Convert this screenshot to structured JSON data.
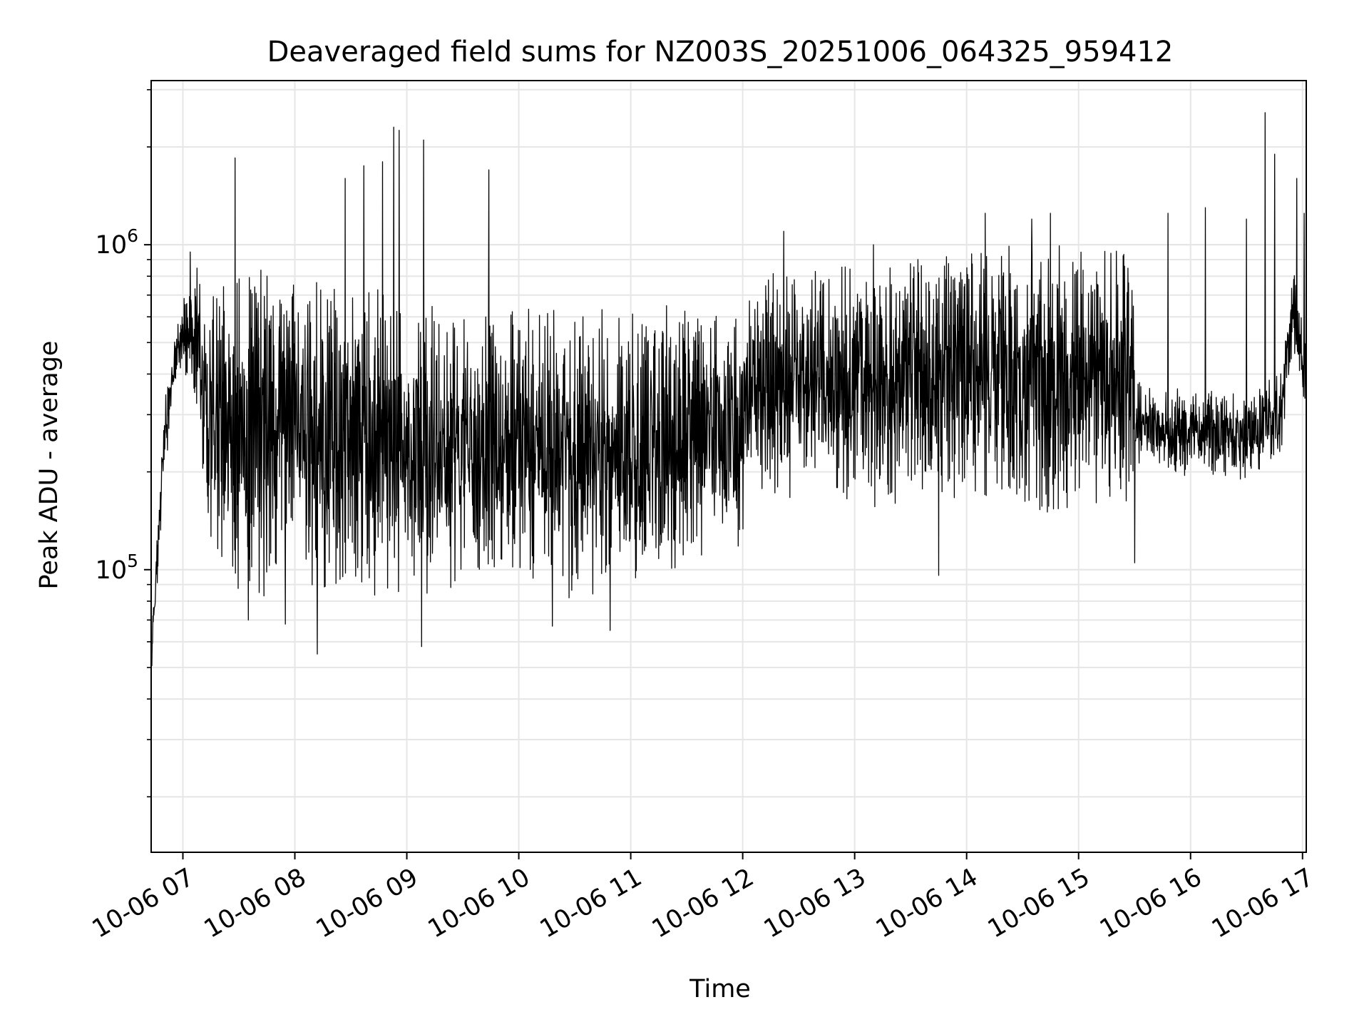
{
  "chart_data": {
    "type": "line",
    "title": "Deaveraged field sums for NZ003S_20251006_064325_959412",
    "xlabel": "Time",
    "ylabel": "Peak ADU - average",
    "yscale": "log",
    "ylim": [
      13500,
      3200000
    ],
    "xlim": [
      "2025-10-06 06:43",
      "2025-10-06 17:02"
    ],
    "grid": true,
    "legend": "none",
    "y_ticks": [
      {
        "value": 100000,
        "base": "10",
        "exp": "5"
      },
      {
        "value": 1000000,
        "base": "10",
        "exp": "6"
      }
    ],
    "x_ticks": [
      {
        "value": "2025-10-06 07:00",
        "label": "10-06 07"
      },
      {
        "value": "2025-10-06 08:00",
        "label": "10-06 08"
      },
      {
        "value": "2025-10-06 09:00",
        "label": "10-06 09"
      },
      {
        "value": "2025-10-06 10:00",
        "label": "10-06 10"
      },
      {
        "value": "2025-10-06 11:00",
        "label": "10-06 11"
      },
      {
        "value": "2025-10-06 12:00",
        "label": "10-06 12"
      },
      {
        "value": "2025-10-06 13:00",
        "label": "10-06 13"
      },
      {
        "value": "2025-10-06 14:00",
        "label": "10-06 14"
      },
      {
        "value": "2025-10-06 15:00",
        "label": "10-06 15"
      },
      {
        "value": "2025-10-06 16:00",
        "label": "10-06 16"
      },
      {
        "value": "2025-10-06 17:00",
        "label": "10-06 17"
      }
    ],
    "series": [
      {
        "color": "#000000",
        "envelope": [
          {
            "t": "2025-10-06 06:43",
            "low": 45000,
            "high": 60000
          },
          {
            "t": "2025-10-06 06:50",
            "low": 190000,
            "high": 330000
          },
          {
            "t": "2025-10-06 06:57",
            "low": 420000,
            "high": 560000
          },
          {
            "t": "2025-10-06 07:05",
            "low": 380000,
            "high": 900000
          },
          {
            "t": "2025-10-06 07:15",
            "low": 110000,
            "high": 800000
          },
          {
            "t": "2025-10-06 07:30",
            "low": 80000,
            "high": 850000
          },
          {
            "t": "2025-10-06 07:45",
            "low": 75000,
            "high": 850000
          },
          {
            "t": "2025-10-06 08:00",
            "low": 140000,
            "high": 850000
          },
          {
            "t": "2025-10-06 08:10",
            "low": 80000,
            "high": 900000
          },
          {
            "t": "2025-10-06 08:30",
            "low": 80000,
            "high": 800000
          },
          {
            "t": "2025-10-06 09:00",
            "low": 80000,
            "high": 700000
          },
          {
            "t": "2025-10-06 09:30",
            "low": 90000,
            "high": 650000
          },
          {
            "t": "2025-10-06 10:00",
            "low": 85000,
            "high": 650000
          },
          {
            "t": "2025-10-06 10:30",
            "low": 80000,
            "high": 650000
          },
          {
            "t": "2025-10-06 11:00",
            "low": 90000,
            "high": 650000
          },
          {
            "t": "2025-10-06 11:30",
            "low": 100000,
            "high": 650000
          },
          {
            "t": "2025-10-06 11:58",
            "low": 110000,
            "high": 600000
          },
          {
            "t": "2025-10-06 12:05",
            "low": 180000,
            "high": 800000
          },
          {
            "t": "2025-10-06 12:30",
            "low": 160000,
            "high": 850000
          },
          {
            "t": "2025-10-06 13:00",
            "low": 150000,
            "high": 900000
          },
          {
            "t": "2025-10-06 13:30",
            "low": 160000,
            "high": 950000
          },
          {
            "t": "2025-10-06 14:00",
            "low": 160000,
            "high": 1000000
          },
          {
            "t": "2025-10-06 14:30",
            "low": 150000,
            "high": 1050000
          },
          {
            "t": "2025-10-06 15:00",
            "low": 150000,
            "high": 1000000
          },
          {
            "t": "2025-10-06 15:28",
            "low": 160000,
            "high": 950000
          },
          {
            "t": "2025-10-06 15:32",
            "low": 200000,
            "high": 380000
          },
          {
            "t": "2025-10-06 16:00",
            "low": 190000,
            "high": 360000
          },
          {
            "t": "2025-10-06 16:30",
            "low": 190000,
            "high": 360000
          },
          {
            "t": "2025-10-06 16:48",
            "low": 220000,
            "high": 420000
          },
          {
            "t": "2025-10-06 16:55",
            "low": 450000,
            "high": 900000
          },
          {
            "t": "2025-10-06 17:02",
            "low": 280000,
            "high": 500000
          }
        ],
        "spikes": [
          {
            "t": "2025-10-06 07:04",
            "value": 950000
          },
          {
            "t": "2025-10-06 07:28",
            "value": 1850000
          },
          {
            "t": "2025-10-06 07:35",
            "value": 70000
          },
          {
            "t": "2025-10-06 07:55",
            "value": 68000
          },
          {
            "t": "2025-10-06 08:12",
            "value": 1050000
          },
          {
            "t": "2025-10-06 08:12",
            "value": 55000
          },
          {
            "t": "2025-10-06 08:27",
            "value": 1600000
          },
          {
            "t": "2025-10-06 08:37",
            "value": 1750000
          },
          {
            "t": "2025-10-06 08:47",
            "value": 1800000
          },
          {
            "t": "2025-10-06 08:53",
            "value": 2300000
          },
          {
            "t": "2025-10-06 08:56",
            "value": 2250000
          },
          {
            "t": "2025-10-06 09:09",
            "value": 2100000
          },
          {
            "t": "2025-10-06 09:08",
            "value": 58000
          },
          {
            "t": "2025-10-06 09:44",
            "value": 1700000
          },
          {
            "t": "2025-10-06 10:18",
            "value": 67000
          },
          {
            "t": "2025-10-06 10:49",
            "value": 65000
          },
          {
            "t": "2025-10-06 12:22",
            "value": 1100000
          },
          {
            "t": "2025-10-06 13:10",
            "value": 1000000
          },
          {
            "t": "2025-10-06 13:45",
            "value": 96000
          },
          {
            "t": "2025-10-06 14:10",
            "value": 1250000
          },
          {
            "t": "2025-10-06 14:35",
            "value": 1200000
          },
          {
            "t": "2025-10-06 14:45",
            "value": 1250000
          },
          {
            "t": "2025-10-06 15:30",
            "value": 105000
          },
          {
            "t": "2025-10-06 15:48",
            "value": 1250000
          },
          {
            "t": "2025-10-06 16:08",
            "value": 1300000
          },
          {
            "t": "2025-10-06 16:30",
            "value": 1200000
          },
          {
            "t": "2025-10-06 16:40",
            "value": 2550000
          },
          {
            "t": "2025-10-06 16:45",
            "value": 1900000
          },
          {
            "t": "2025-10-06 16:57",
            "value": 1600000
          },
          {
            "t": "2025-10-06 17:01",
            "value": 1250000
          }
        ]
      }
    ]
  }
}
